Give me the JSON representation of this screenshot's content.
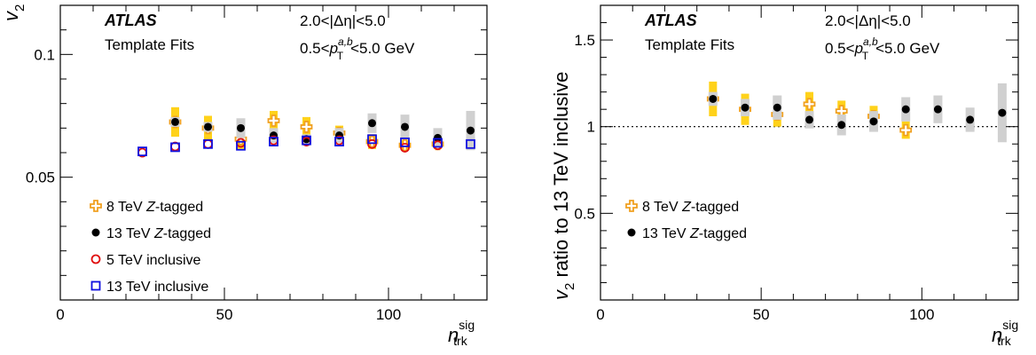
{
  "colors": {
    "z8": "#f0a020",
    "z8_sys": "#ffd21a",
    "z13": "#000000",
    "z13_sys": "#d0d0d0",
    "inc5": "#e01010",
    "inc13": "#1010e0"
  },
  "chart_data": [
    {
      "type": "scatter",
      "experiment": "ATLAS",
      "method": "Template Fits",
      "cut_eta": "2.0<|Δη|<5.0",
      "cut_pt_pre": "0.5<",
      "cut_pt_var": "p",
      "cut_pt_sup": "a,b",
      "cut_pt_sub": "T",
      "cut_pt_post": "<5.0 GeV",
      "xlabel_main": "n",
      "xlabel_sup": "sig",
      "xlabel_sub": "trk",
      "ylabel_main": "v",
      "ylabel_sub": "2",
      "xlim": [
        0,
        130
      ],
      "ylim": [
        0,
        0.12
      ],
      "xticks": [
        0,
        50,
        100
      ],
      "xtick_labels": [
        "0",
        "50",
        "100"
      ],
      "yticks": [
        0.05,
        0.1
      ],
      "ytick_labels": [
        "0.05",
        "0.1"
      ],
      "legend_position": "bottom-left",
      "series": [
        {
          "name_main": "8 TeV ",
          "name_italic": "Z",
          "name_tail": "-tagged",
          "marker": "open-cross",
          "color_key": "z8",
          "sys_color_key": "z8_sys",
          "x": [
            35,
            45,
            55,
            65,
            75,
            85,
            95,
            105,
            115
          ],
          "y": [
            0.0725,
            0.07,
            0.0655,
            0.073,
            0.0705,
            0.068,
            0.0645,
            0.063,
            0.0635
          ],
          "sys": [
            0.006,
            0.005,
            0.004,
            0.004,
            0.004,
            0.003,
            0.003,
            0.002,
            0.002
          ]
        },
        {
          "name_main": "13 TeV ",
          "name_italic": "Z",
          "name_tail": "-tagged",
          "marker": "filled-circle",
          "color_key": "z13",
          "sys_color_key": "z13_sys",
          "x": [
            35,
            45,
            55,
            65,
            75,
            85,
            95,
            105,
            115,
            125
          ],
          "y": [
            0.0725,
            0.0705,
            0.07,
            0.067,
            0.0655,
            0.067,
            0.072,
            0.0705,
            0.066,
            0.069
          ],
          "sys": [
            0.002,
            0.002,
            0.004,
            0.003,
            0.002,
            0.003,
            0.004,
            0.005,
            0.004,
            0.008
          ]
        },
        {
          "name_main": "5 TeV inclusive",
          "name_italic": "",
          "name_tail": "",
          "marker": "open-circle",
          "color_key": "inc5",
          "x": [
            25,
            35,
            45,
            55,
            65,
            75,
            85,
            95,
            105,
            115
          ],
          "y": [
            0.06,
            0.0625,
            0.0635,
            0.064,
            0.065,
            0.0645,
            0.065,
            0.0635,
            0.062,
            0.063
          ]
        },
        {
          "name_main": "13 TeV inclusive",
          "name_italic": "",
          "name_tail": "",
          "marker": "open-square",
          "color_key": "inc13",
          "x": [
            25,
            35,
            45,
            55,
            65,
            75,
            85,
            95,
            105,
            115,
            125
          ],
          "y": [
            0.0605,
            0.0622,
            0.0635,
            0.0628,
            0.0645,
            0.065,
            0.0645,
            0.0655,
            0.0642,
            0.064,
            0.0635
          ]
        }
      ]
    },
    {
      "type": "scatter",
      "experiment": "ATLAS",
      "method": "Template Fits",
      "cut_eta": "2.0<|Δη|<5.0",
      "cut_pt_pre": "0.5<",
      "cut_pt_var": "p",
      "cut_pt_sup": "a,b",
      "cut_pt_sub": "T",
      "cut_pt_post": "<5.0 GeV",
      "xlabel_main": "n",
      "xlabel_sup": "sig",
      "xlabel_sub": "trk",
      "ylabel_main": "v",
      "ylabel_sub": "2",
      "ylabel_tail": " ratio to 13 TeV inclusive",
      "xlim": [
        0,
        130
      ],
      "ylim": [
        0,
        1.7
      ],
      "xticks": [
        0,
        50,
        100
      ],
      "xtick_labels": [
        "0",
        "50",
        "100"
      ],
      "yticks": [
        0.5,
        1,
        1.5
      ],
      "ytick_labels": [
        "0.5",
        "1",
        "1.5"
      ],
      "reference_line": 1,
      "legend_position": "middle-left",
      "series": [
        {
          "name_main": "8 TeV ",
          "name_italic": "Z",
          "name_tail": "-tagged",
          "marker": "open-cross",
          "color_key": "z8",
          "sys_color_key": "z8_sys",
          "x": [
            35,
            45,
            55,
            65,
            75,
            85,
            95
          ],
          "y": [
            1.16,
            1.1,
            1.07,
            1.13,
            1.09,
            1.06,
            0.98
          ],
          "sys": [
            0.1,
            0.09,
            0.07,
            0.07,
            0.06,
            0.06,
            0.05
          ]
        },
        {
          "name_main": "13 TeV ",
          "name_italic": "Z",
          "name_tail": "-tagged",
          "marker": "filled-circle",
          "color_key": "z13",
          "sys_color_key": "z13_sys",
          "x": [
            35,
            45,
            55,
            65,
            75,
            85,
            95,
            105,
            115,
            125
          ],
          "y": [
            1.16,
            1.11,
            1.11,
            1.04,
            1.01,
            1.03,
            1.1,
            1.1,
            1.04,
            1.08
          ],
          "sys": [
            0.04,
            0.05,
            0.07,
            0.05,
            0.06,
            0.06,
            0.07,
            0.08,
            0.07,
            0.17
          ]
        }
      ]
    }
  ]
}
